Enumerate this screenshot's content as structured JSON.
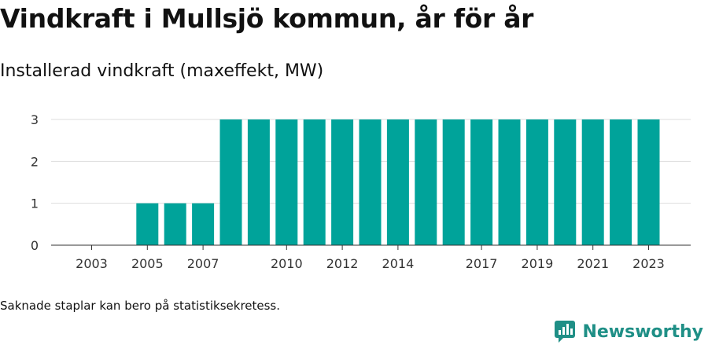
{
  "title": "Vindkraft i Mullsjö kommun, år för år",
  "subtitle": "Installerad vindkraft (maxeffekt, MW)",
  "footnote": "Saknade staplar kan bero på statistiksekretess.",
  "brand": {
    "name": "Newsworthy",
    "color": "#1f8f86"
  },
  "colors": {
    "bar": "#00a39a",
    "grid": "#dddddd",
    "axis": "#333333"
  },
  "chart_data": {
    "type": "bar",
    "title": "Vindkraft i Mullsjö kommun, år för år",
    "ylabel": "Installerad vindkraft (maxeffekt, MW)",
    "xlabel": "",
    "categories": [
      2003,
      2004,
      2005,
      2006,
      2007,
      2008,
      2009,
      2010,
      2011,
      2012,
      2013,
      2014,
      2015,
      2016,
      2017,
      2018,
      2019,
      2020,
      2021,
      2022,
      2023
    ],
    "values": [
      0,
      0,
      1,
      1,
      1,
      3,
      3,
      3,
      3,
      3,
      3,
      3,
      3,
      3,
      3,
      3,
      3,
      3,
      3,
      3,
      3
    ],
    "x_tick_labels": [
      "2003",
      "2005",
      "2007",
      "2010",
      "2012",
      "2014",
      "2017",
      "2019",
      "2021",
      "2023"
    ],
    "y_ticks": [
      0,
      1,
      2,
      3
    ],
    "ylim": [
      0,
      3
    ],
    "grid": true,
    "legend": "none"
  }
}
